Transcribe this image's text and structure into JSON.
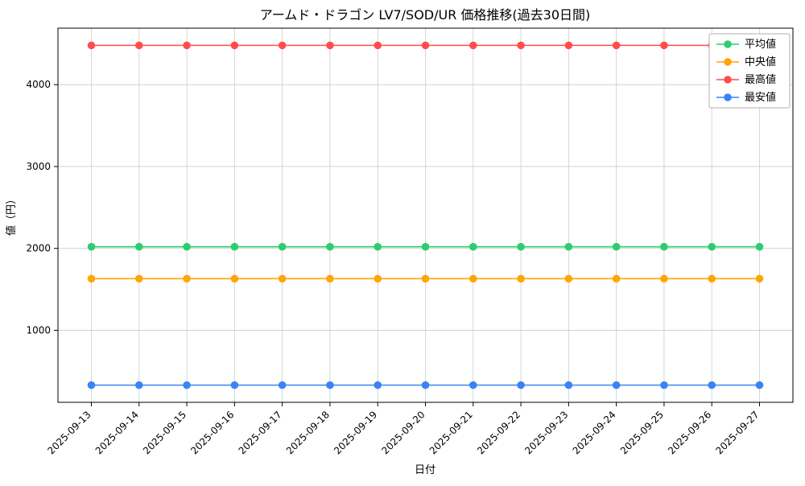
{
  "chart_data": {
    "type": "line",
    "title": "アームド・ドラゴン LV7/SOD/UR 価格推移(過去30日間)",
    "xlabel": "日付",
    "ylabel": "値（円）",
    "x": [
      "2025-09-13",
      "2025-09-14",
      "2025-09-15",
      "2025-09-16",
      "2025-09-17",
      "2025-09-18",
      "2025-09-19",
      "2025-09-20",
      "2025-09-21",
      "2025-09-22",
      "2025-09-23",
      "2025-09-24",
      "2025-09-25",
      "2025-09-26",
      "2025-09-27"
    ],
    "yticks": [
      1000,
      2000,
      3000,
      4000
    ],
    "ylim": [
      120,
      4690
    ],
    "grid": true,
    "legend_position": "upper right",
    "marker": "o",
    "colors": {
      "average": "#2ecc71",
      "median": "#ffa500",
      "max": "#ff4d4d",
      "min": "#3b82f6",
      "grid": "#cccccc",
      "axis": "#000000",
      "legend_border": "#b0b0b0"
    },
    "series": [
      {
        "key": "average",
        "name": "平均値",
        "color": "#2ecc71",
        "values": [
          2020,
          2020,
          2020,
          2020,
          2020,
          2020,
          2020,
          2020,
          2020,
          2020,
          2020,
          2020,
          2020,
          2020,
          2020
        ]
      },
      {
        "key": "median",
        "name": "中央値",
        "color": "#ffa500",
        "values": [
          1630,
          1630,
          1630,
          1630,
          1630,
          1630,
          1630,
          1630,
          1630,
          1630,
          1630,
          1630,
          1630,
          1630,
          1630
        ]
      },
      {
        "key": "max",
        "name": "最高値",
        "color": "#ff4d4d",
        "values": [
          4480,
          4480,
          4480,
          4480,
          4480,
          4480,
          4480,
          4480,
          4480,
          4480,
          4480,
          4480,
          4480,
          4480,
          4480
        ]
      },
      {
        "key": "min",
        "name": "最安値",
        "color": "#3b82f6",
        "values": [
          330,
          330,
          330,
          330,
          330,
          330,
          330,
          330,
          330,
          330,
          330,
          330,
          330,
          330,
          330
        ]
      }
    ]
  }
}
